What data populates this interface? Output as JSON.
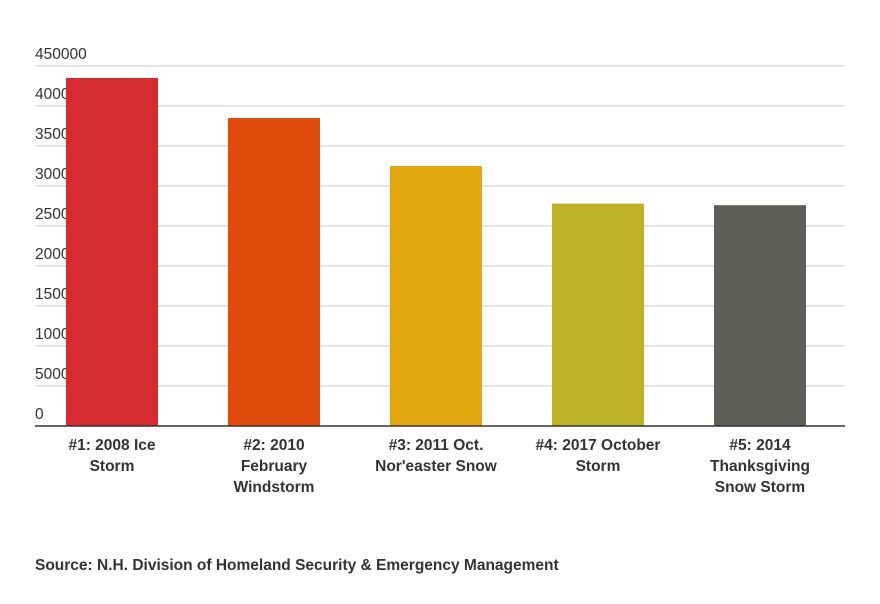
{
  "chart_data": {
    "type": "bar",
    "categories": [
      [
        "#1: 2008 Ice",
        "Storm"
      ],
      [
        "#2: 2010",
        "February",
        "Windstorm"
      ],
      [
        "#3: 2011 Oct.",
        "Nor'easter Snow"
      ],
      [
        "#4: 2017 October",
        "Storm"
      ],
      [
        "#5: 2014",
        "Thanksgiving",
        "Snow Storm"
      ]
    ],
    "values": [
      435000,
      385000,
      325000,
      278000,
      276000
    ],
    "colors": [
      "#d62b30",
      "#e04a0a",
      "#e2a70f",
      "#bdb225",
      "#5e5f59"
    ],
    "yticks": [
      "0",
      "50000",
      "100000",
      "150000",
      "200000",
      "250000",
      "300000",
      "350000",
      "400000",
      "450000"
    ],
    "ylim": [
      0,
      450000
    ],
    "grid": true,
    "legend": "none"
  },
  "source": "Source: N.H. Division of Homeland Security & Emergency Management"
}
